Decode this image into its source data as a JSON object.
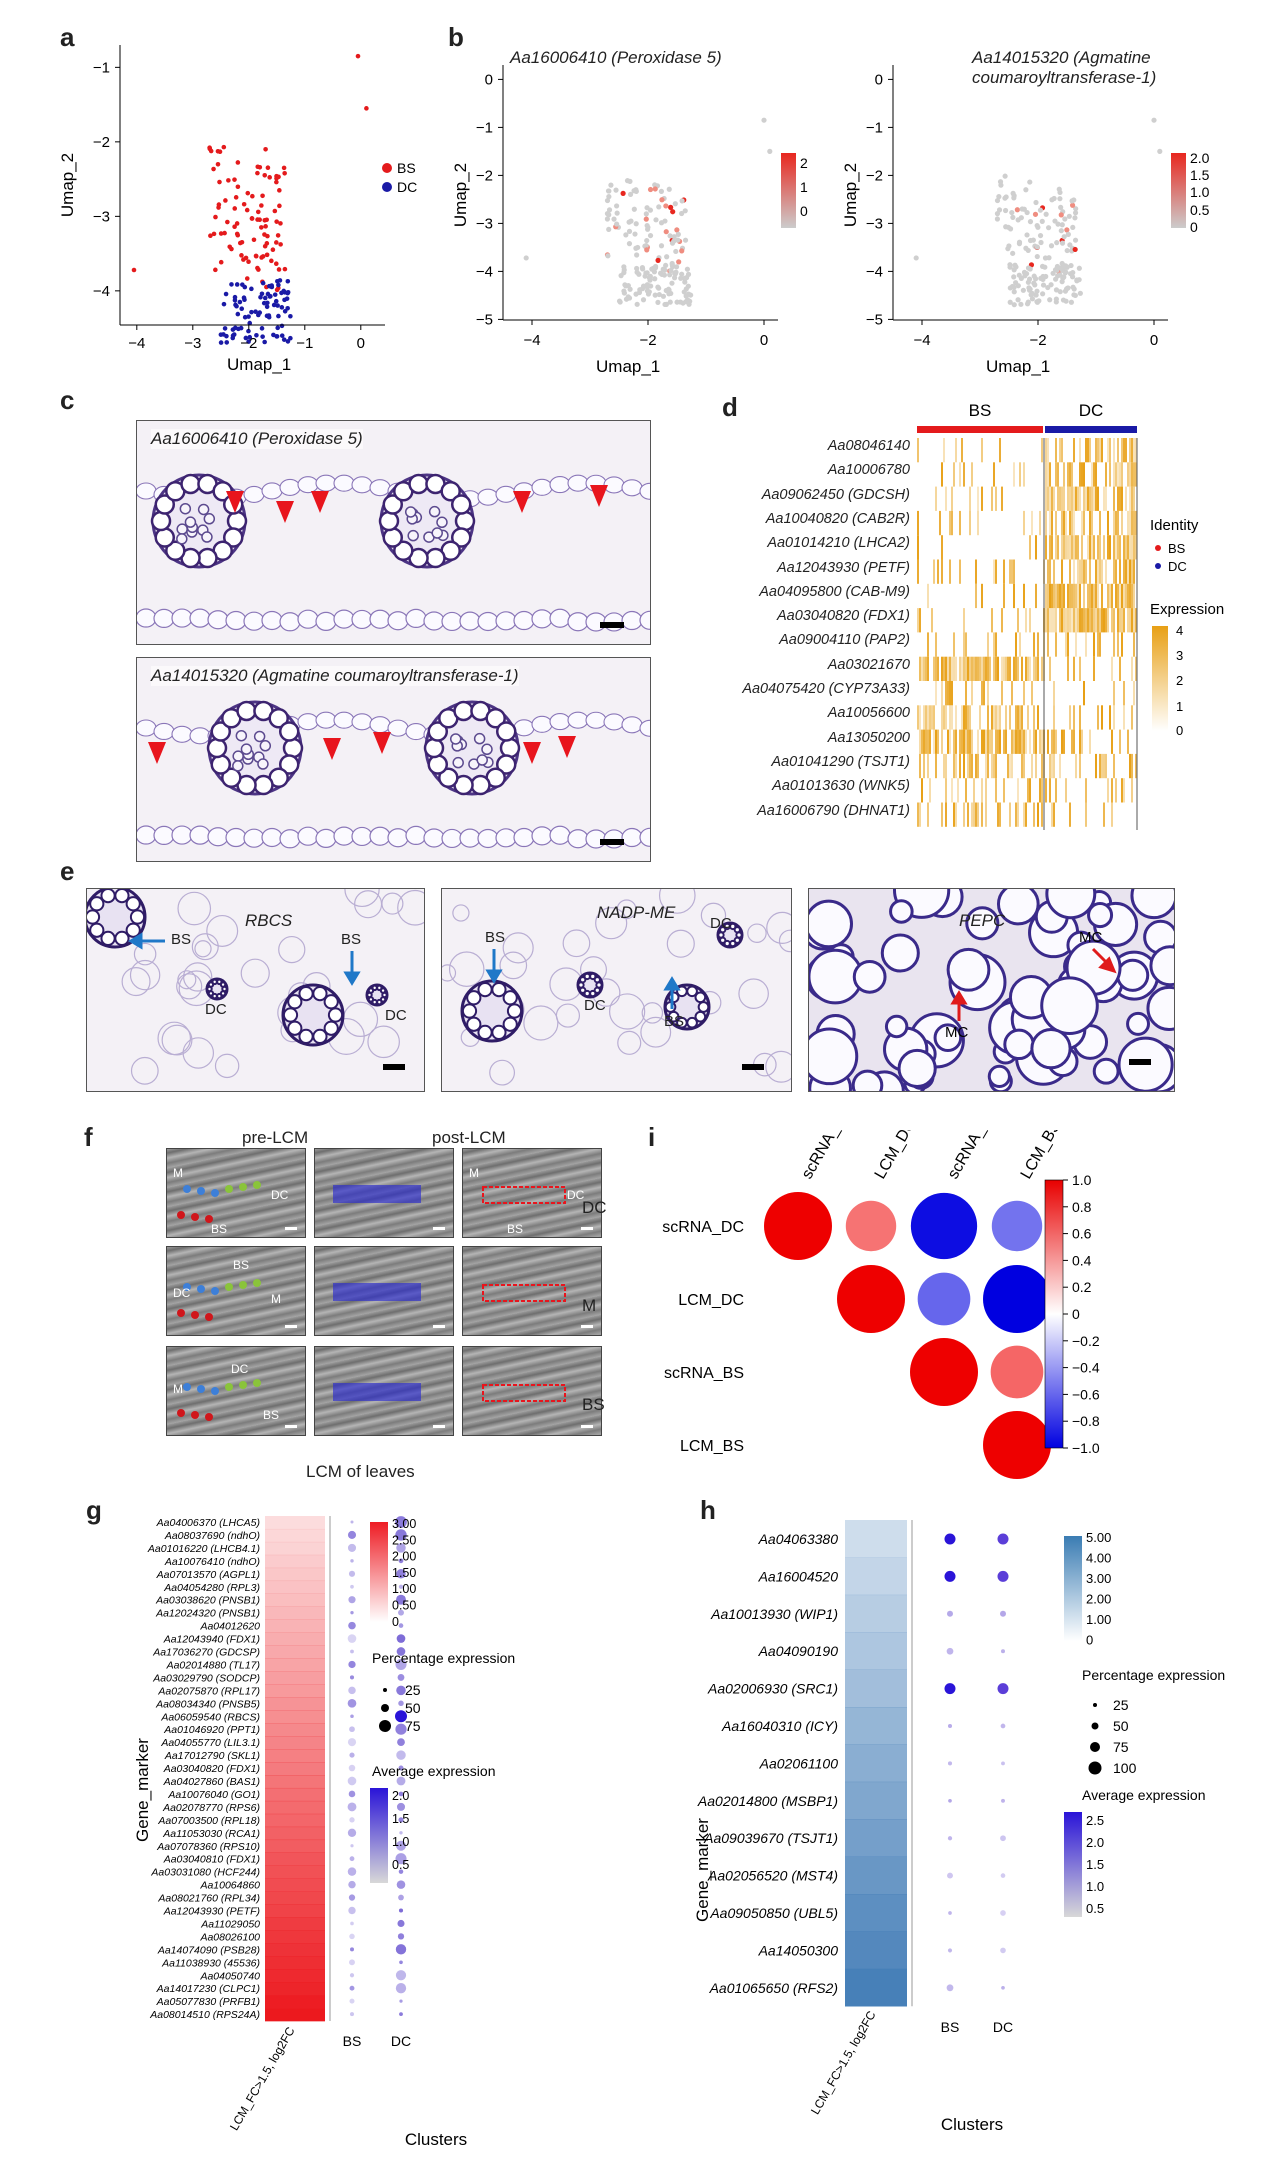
{
  "panels": {
    "a": "a",
    "b": "b",
    "c": "c",
    "d": "d",
    "e": "e",
    "f": "f",
    "g": "g",
    "h": "h",
    "i": "i"
  },
  "panel_a": {
    "xlabel": "Umap_1",
    "ylabel": "Umap_2",
    "xticks": [
      "−4",
      "−3",
      "−2",
      "−1",
      "0"
    ],
    "yticks": [
      "−1",
      "−2",
      "−3",
      "−4"
    ],
    "legend": [
      {
        "name": "BS",
        "color": "#e41a1c"
      },
      {
        "name": "DC",
        "color": "#1a1aa6"
      }
    ]
  },
  "panel_b": {
    "plots": [
      {
        "title": "Aa16006410 (Peroxidase 5)",
        "title2": "",
        "scale_ticks": [
          "2",
          "1",
          "0"
        ]
      },
      {
        "title": "Aa14015320 (Agmatine",
        "title2": "coumaroyltransferase-1)",
        "scale_ticks": [
          "2.0",
          "1.5",
          "1.0",
          "0.5",
          "0"
        ]
      }
    ],
    "xlabel": "Umap_1",
    "ylabel": "Umap_2",
    "xticks": [
      "−4",
      "−2",
      "0"
    ],
    "yticks": [
      "0",
      "−1",
      "−2",
      "−3",
      "−4",
      "−5"
    ]
  },
  "panel_c": {
    "images": [
      {
        "label": "Aa16006410 (Peroxidase 5)"
      },
      {
        "label": "Aa14015320 (Agmatine coumaroyltransferase-1)"
      }
    ]
  },
  "panel_d": {
    "groups": [
      "BS",
      "DC"
    ],
    "genes": [
      "Aa08046140",
      "Aa10006780",
      "Aa09062450 (GDCSH)",
      "Aa10040820 (CAB2R)",
      "Aa01014210 (LHCA2)",
      "Aa12043930 (PETF)",
      "Aa04095800 (CAB-M9)",
      "Aa03040820 (FDX1)",
      "Aa09004110 (PAP2)",
      "Aa03021670",
      "Aa04075420 (CYP73A33)",
      "Aa10056600",
      "Aa13050200",
      "Aa01041290 (TSJT1)",
      "Aa01013630 (WNK5)",
      "Aa16006790 (DHNAT1)"
    ],
    "identity_title": "Identity",
    "identity": [
      {
        "name": "BS",
        "color": "#e41a1c"
      },
      {
        "name": "DC",
        "color": "#1a1aa6"
      }
    ],
    "expression_title": "Expression",
    "expression_ticks": [
      "4",
      "3",
      "2",
      "1",
      "0"
    ]
  },
  "panel_e": {
    "images": [
      {
        "title": "RBCS",
        "labels": [
          "BS",
          "BS",
          "DC",
          "DC"
        ]
      },
      {
        "title": "NADP-ME",
        "labels": [
          "BS",
          "DC",
          "BS",
          "DC"
        ]
      },
      {
        "title": "PEPC",
        "labels": [
          "MC",
          "MC"
        ]
      }
    ]
  },
  "panel_f": {
    "col_headers": [
      "pre-LCM",
      "post-LCM"
    ],
    "row_labels": [
      "DC",
      "M",
      "BS"
    ],
    "caption": "LCM of leaves",
    "tags": {
      "m": "M",
      "dc": "DC",
      "bs": "BS"
    }
  },
  "panel_i": {
    "labels": [
      "scRNA_DC",
      "LCM_DC",
      "scRNA_BS",
      "LCM_BS"
    ],
    "scale_ticks": [
      "1.0",
      "0.8",
      "0.6",
      "0.4",
      "0.2",
      "0",
      "−0.2",
      "−0.4",
      "−0.6",
      "−0.8",
      "−1.0"
    ],
    "matrix": [
      [
        1.0,
        0.55,
        -0.95,
        -0.55
      ],
      [
        null,
        1.0,
        -0.6,
        -1.0
      ],
      [
        null,
        null,
        1.0,
        0.6
      ],
      [
        null,
        null,
        null,
        1.0
      ]
    ]
  },
  "panel_g": {
    "ylabel": "Gene_marker",
    "xlabel": "Clusters",
    "col0": "LCM_FC>1.5, log2FC",
    "cols": [
      "BS",
      "DC"
    ],
    "genes": [
      "Aa04006370 (LHCA5)",
      "Aa08037690 (ndhO)",
      "Aa01016220 (LHCB4.1)",
      "Aa10076410 (ndhO)",
      "Aa07013570 (AGPL1)",
      "Aa04054280 (RPL3)",
      "Aa03038620 (PNSB1)",
      "Aa12024320 (PNSB1)",
      "Aa04012620",
      "Aa12043940 (FDX1)",
      "Aa17036270 (GDCSP)",
      "Aa02014880 (TL17)",
      "Aa03029790 (SODCP)",
      "Aa02075870 (RPL17)",
      "Aa08034340 (PNSB5)",
      "Aa06059540 (RBCS)",
      "Aa01046920 (PPT1)",
      "Aa04055770 (LIL3.1)",
      "Aa17012790 (SKL1)",
      "Aa03040820 (FDX1)",
      "Aa04027860 (BAS1)",
      "Aa10076040 (GO1)",
      "Aa02078770 (RPS6)",
      "Aa07003500 (RPL18)",
      "Aa11053030 (RCA1)",
      "Aa07078360 (RPS10)",
      "Aa03040810 (FDX1)",
      "Aa03031080 (HCF244)",
      "Aa10064860",
      "Aa08021760 (RPL34)",
      "Aa12043930 (PETF)",
      "Aa11029050",
      "Aa08026100",
      "Aa14074090 (PSB28)",
      "Aa11038930 (45536)",
      "Aa04050740",
      "Aa14017230 (CLPC1)",
      "Aa05077830 (PRFB1)",
      "Aa08014510 (RPS24A)"
    ],
    "fc_scale_ticks": [
      "3.00",
      "2.50",
      "2.00",
      "1.50",
      "1.00",
      "0.50",
      "0"
    ],
    "pct_title": "Percentage expression",
    "pct_ticks": [
      "25",
      "50",
      "75"
    ],
    "avg_title": "Average expression",
    "avg_ticks": [
      "2.0",
      "1.5",
      "1.0",
      "0.5"
    ]
  },
  "panel_h": {
    "ylabel": "Gene_marker",
    "xlabel": "Clusters",
    "col0": "LCM_FC>1.5, log2FC",
    "cols": [
      "BS",
      "DC"
    ],
    "genes": [
      "Aa04063380",
      "Aa16004520",
      "Aa10013930 (WIP1)",
      "Aa04090190",
      "Aa02006930 (SRC1)",
      "Aa16040310 (ICY)",
      "Aa02061100",
      "Aa02014800 (MSBP1)",
      "Aa09039670 (TSJT1)",
      "Aa02056520 (MST4)",
      "Aa09050850 (UBL5)",
      "Aa14050300",
      "Aa01065650 (RFS2)"
    ],
    "fc_scale_ticks": [
      "5.00",
      "4.00",
      "3.00",
      "2.00",
      "1.00",
      "0"
    ],
    "pct_title": "Percentage expression",
    "pct_ticks": [
      "25",
      "50",
      "75",
      "100"
    ],
    "avg_title": "Average expression",
    "avg_ticks": [
      "2.5",
      "2.0",
      "1.5",
      "1.0",
      "0.5"
    ]
  }
}
